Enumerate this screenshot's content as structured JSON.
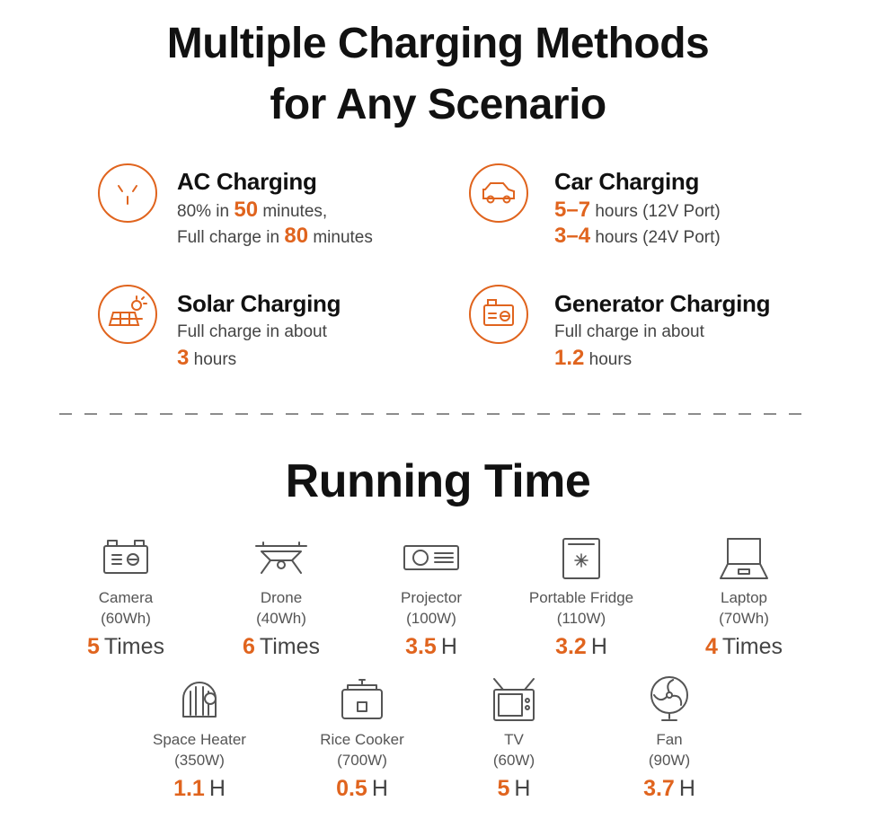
{
  "header": {
    "title_lines": [
      "Multiple Charging Methods",
      "for Any Scenario"
    ]
  },
  "charging": [
    {
      "title": "AC Charging",
      "lines": [
        {
          "before": "80% in ",
          "value": "50",
          "after": " minutes,"
        },
        {
          "before": "Full charge in ",
          "value": "80",
          "after": " minutes"
        }
      ]
    },
    {
      "title": "Car Charging",
      "lines": [
        {
          "value": "5–7",
          "after": " hours (12V Port)"
        },
        {
          "value": "3–4",
          "after": " hours (24V Port)"
        }
      ]
    },
    {
      "title": "Solar Charging",
      "lines": [
        {
          "before": "Full charge in about"
        },
        {
          "value": "3",
          "after": " hours"
        }
      ]
    },
    {
      "title": "Generator Charging",
      "lines": [
        {
          "before": "Full charge in about"
        },
        {
          "value": "1.2",
          "after": " hours"
        }
      ]
    }
  ],
  "running_time": {
    "title": "Running Time",
    "items": [
      {
        "name": "Camera",
        "spec": "(60Wh)",
        "value": 5,
        "unit": "Times"
      },
      {
        "name": "Drone",
        "spec": "(40Wh)",
        "value": 6,
        "unit": "Times"
      },
      {
        "name": "Projector",
        "spec": "(100W)",
        "value": 3.5,
        "unit": "H"
      },
      {
        "name": "Portable Fridge",
        "spec": "(110W)",
        "value": 3.2,
        "unit": "H"
      },
      {
        "name": "Laptop",
        "spec": "(70Wh)",
        "value": 4,
        "unit": "Times"
      },
      {
        "name": "Space Heater",
        "spec": "(350W)",
        "value": 1.1,
        "unit": "H"
      },
      {
        "name": "Rice Cooker",
        "spec": "(700W)",
        "value": 0.5,
        "unit": "H"
      },
      {
        "name": "TV",
        "spec": "(60W)",
        "value": 5,
        "unit": "H"
      },
      {
        "name": "Fan",
        "spec": "(90W)",
        "value": 3.7,
        "unit": "H"
      }
    ]
  }
}
